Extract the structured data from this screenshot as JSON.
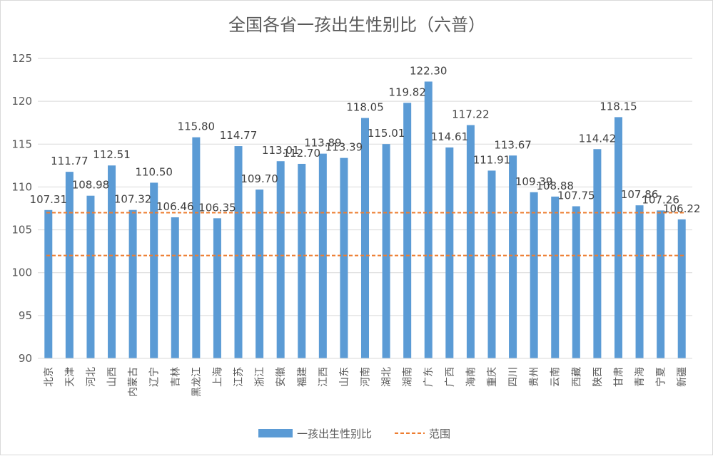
{
  "chart_data": {
    "type": "bar",
    "title": "全国各省一孩出生性别比（六普）",
    "categories": [
      "北京",
      "天津",
      "河北",
      "山西",
      "内蒙古",
      "辽宁",
      "吉林",
      "黑龙江",
      "上海",
      "江苏",
      "浙江",
      "安徽",
      "福建",
      "江西",
      "山东",
      "河南",
      "湖北",
      "湖南",
      "广东",
      "广西",
      "海南",
      "重庆",
      "四川",
      "贵州",
      "云南",
      "西藏",
      "陕西",
      "甘肃",
      "青海",
      "宁夏",
      "新疆"
    ],
    "series": [
      {
        "name": "一孩出生性别比",
        "values": [
          107.31,
          111.77,
          108.98,
          112.51,
          107.32,
          110.5,
          106.46,
          115.8,
          106.35,
          114.77,
          109.7,
          113.01,
          112.7,
          113.89,
          113.39,
          118.05,
          115.01,
          119.82,
          122.3,
          114.61,
          117.22,
          111.91,
          113.67,
          109.39,
          108.88,
          107.75,
          114.42,
          118.15,
          107.86,
          107.26,
          106.22
        ],
        "labels": [
          "107.31",
          "111.77",
          "108.98",
          "112.51",
          "107.32",
          "110.50",
          "106.46",
          "115.80",
          "106.35",
          "114.77",
          "109.70",
          "113.01",
          "112.70",
          "113.89",
          "113.39",
          "118.05",
          "115.01",
          "119.82",
          "122.30",
          "114.61",
          "117.22",
          "111.91",
          "113.67",
          "109.39",
          "108.88",
          "107.75",
          "114.42",
          "118.15",
          "107.86",
          "107.26",
          "106.22"
        ]
      }
    ],
    "range": {
      "name": "范围",
      "lines": [
        107,
        102
      ]
    },
    "ylim": [
      90,
      125
    ],
    "yticks": [
      "90",
      "95",
      "100",
      "105",
      "110",
      "115",
      "120",
      "125"
    ],
    "grid": true,
    "legend": "bottom",
    "colors": {
      "bar": "#5b9bd5",
      "range": "#ed7d31",
      "grid": "#d9d9d9"
    }
  }
}
